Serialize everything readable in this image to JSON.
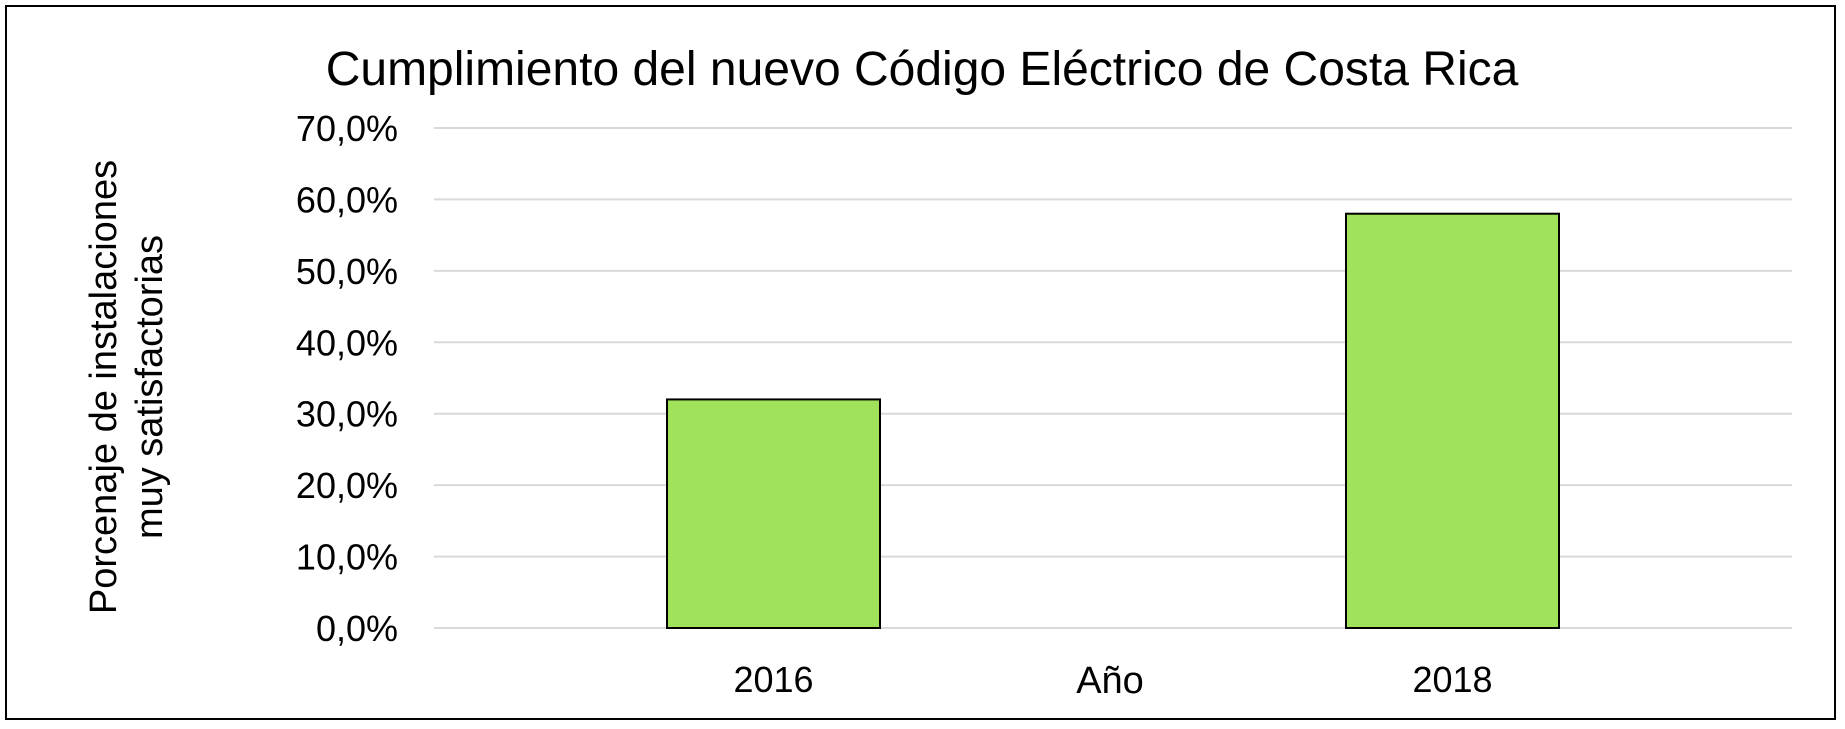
{
  "chart_data": {
    "type": "bar",
    "title": "Cumplimiento del nuevo Código Eléctrico de Costa Rica",
    "xlabel": "Año",
    "ylabel_lines": [
      "Porcenaje de instalaciones",
      "muy satisfactorias"
    ],
    "categories": [
      "2016",
      "2018"
    ],
    "values": [
      32.0,
      58.0
    ],
    "ylim": [
      0,
      70
    ],
    "yticks": [
      0,
      10,
      20,
      30,
      40,
      50,
      60,
      70
    ],
    "ytick_labels": [
      "0,0%",
      "10,0%",
      "20,0%",
      "30,0%",
      "40,0%",
      "50,0%",
      "60,0%",
      "70,0%"
    ],
    "grid": true,
    "legend": "none",
    "colors": {
      "bar_fill": "#a0e35a",
      "bar_stroke": "#000000",
      "grid": "#d9d9d9"
    }
  }
}
